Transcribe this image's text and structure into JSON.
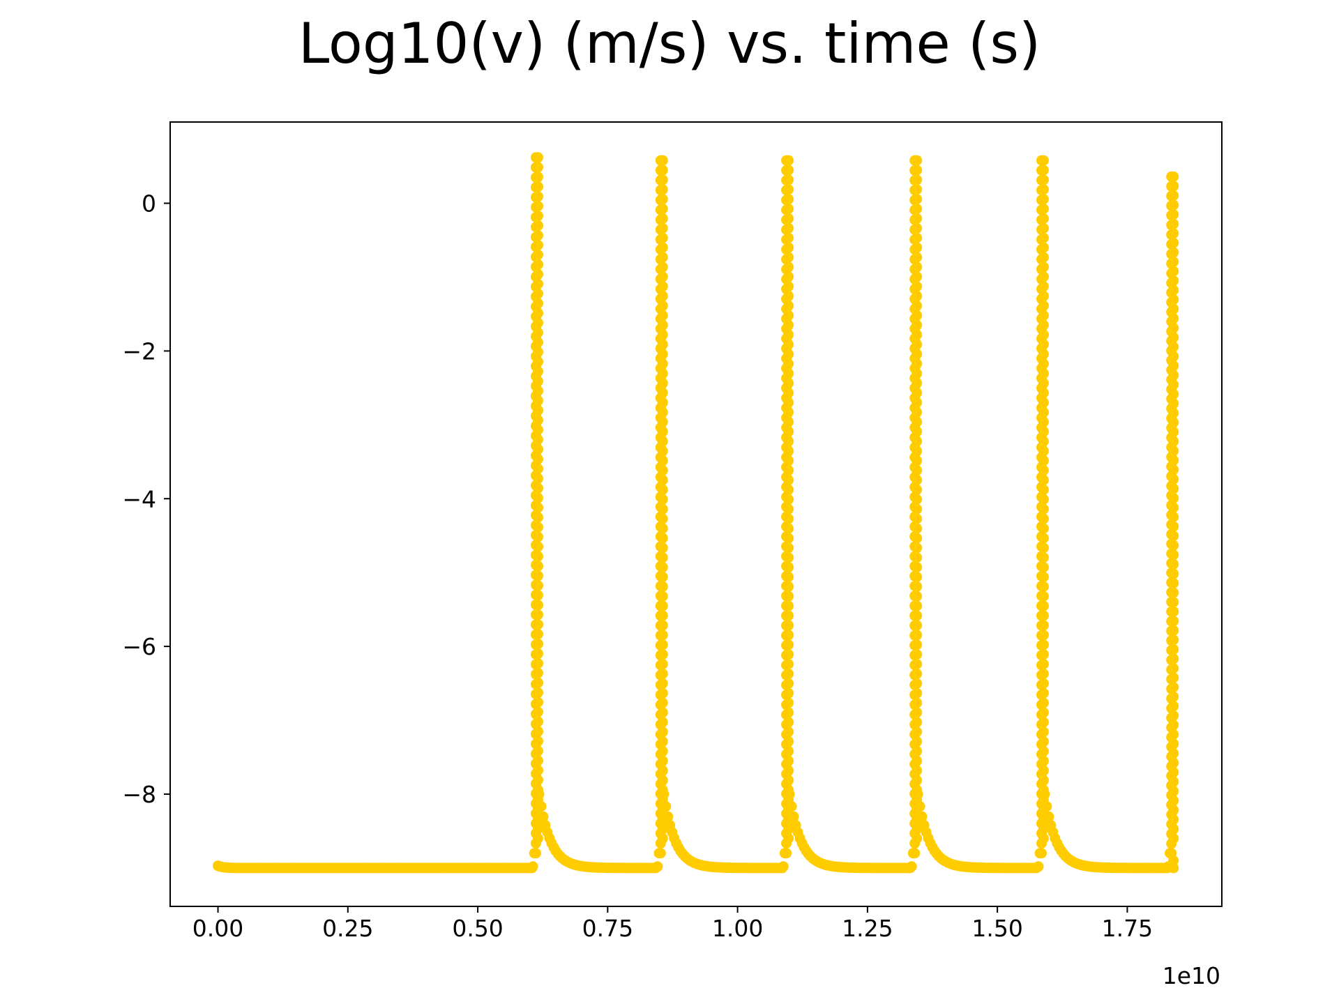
{
  "chart_data": {
    "type": "scatter",
    "title": "Log10(v) (m/s) vs. time (s)",
    "xlabel": "",
    "ylabel": "",
    "x_offset_label": "1e10",
    "xlim": [
      -0.092,
      1.932
    ],
    "ylim": [
      -9.52,
      1.1
    ],
    "x_ticks": [
      0.0,
      0.25,
      0.5,
      0.75,
      1.0,
      1.25,
      1.5,
      1.75
    ],
    "x_tick_labels": [
      "0.00",
      "0.25",
      "0.50",
      "0.75",
      "1.00",
      "1.25",
      "1.50",
      "1.75"
    ],
    "y_ticks": [
      0,
      -2,
      -4,
      -6,
      -8
    ],
    "y_tick_labels": [
      "0",
      "−2",
      "−4",
      "−6",
      "−8"
    ],
    "grid": false,
    "legend": "none",
    "marker_color": "#ffcc00",
    "series": [
      {
        "baseline_log10v": -9.0,
        "initial_log10v": -8.97,
        "events": [
          {
            "onset_x": 0.612,
            "peak_log10v": 0.62
          },
          {
            "onset_x": 0.852,
            "peak_log10v": 0.58
          },
          {
            "onset_x": 1.094,
            "peak_log10v": 0.58
          },
          {
            "onset_x": 1.341,
            "peak_log10v": 0.58
          },
          {
            "onset_x": 1.585,
            "peak_log10v": 0.58
          },
          {
            "onset_x": 1.835,
            "peak_log10v": 0.36
          }
        ]
      }
    ]
  }
}
